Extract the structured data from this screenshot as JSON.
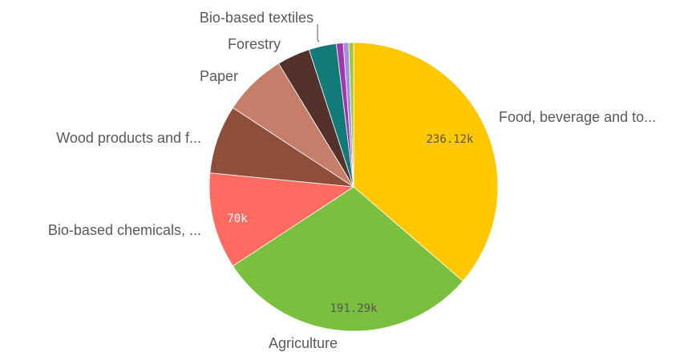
{
  "chart_data": {
    "type": "pie",
    "title": "",
    "slices": [
      {
        "label": "Food, beverage and to...",
        "value": 236120,
        "value_label": "236.12k",
        "color": "#FFC800",
        "value_label_color": "#555555"
      },
      {
        "label": "Agriculture",
        "value": 191290,
        "value_label": "191.29k",
        "color": "#7BBF3F",
        "value_label_color": "#555555"
      },
      {
        "label": "Bio-based chemicals, ...",
        "value": 70000,
        "value_label": "70k",
        "color": "#FF6B60",
        "value_label_color": "#ffffff"
      },
      {
        "label": "Wood products and f...",
        "value": 50000,
        "value_label": "",
        "color": "#8E4E3A",
        "value_label_color": "#ffffff"
      },
      {
        "label": "Paper",
        "value": 46000,
        "value_label": "",
        "color": "#C47E6A",
        "value_label_color": "#ffffff"
      },
      {
        "label": "",
        "value": 24000,
        "value_label": "",
        "color": "#54312A",
        "value_label_color": "#ffffff"
      },
      {
        "label": "Forestry",
        "value": 20000,
        "value_label": "",
        "color": "#127A78",
        "value_label_color": "#ffffff"
      },
      {
        "label": "Bio-based textiles",
        "value": 5000,
        "value_label": "",
        "color": "#9B38AE",
        "value_label_color": "#ffffff"
      },
      {
        "label": "",
        "value": 4000,
        "value_label": "",
        "color": "#A98BE6",
        "value_label_color": "#ffffff"
      },
      {
        "label": "",
        "value": 3500,
        "value_label": "",
        "color": "#9BCB3A",
        "value_label_color": "#ffffff"
      }
    ]
  }
}
